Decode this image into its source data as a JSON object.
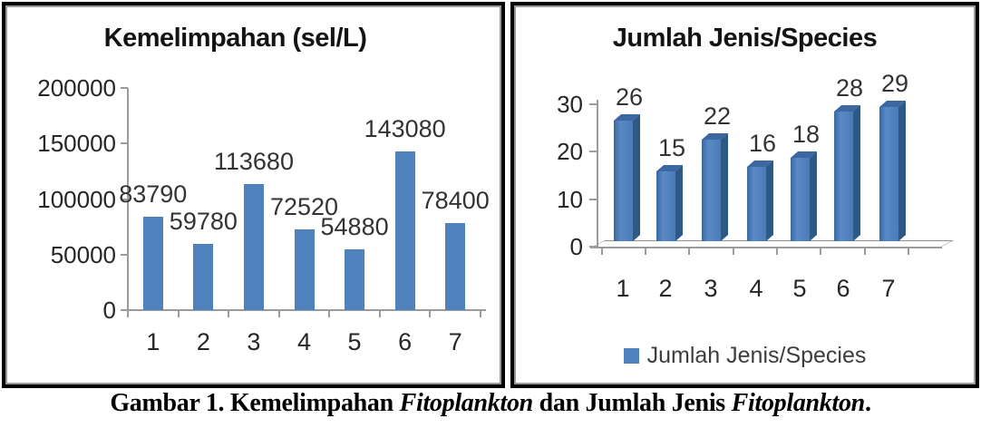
{
  "figure": {
    "caption_segments": [
      {
        "text": "Gambar 1. Kemelimpahan ",
        "italic": false
      },
      {
        "text": "Fitoplankton",
        "italic": true
      },
      {
        "text": " dan Jumlah Jenis ",
        "italic": false
      },
      {
        "text": "Fitoplankton",
        "italic": true
      },
      {
        "text": ".",
        "italic": false
      }
    ]
  },
  "colors": {
    "bar_blue": "#4f81bd",
    "bar3d_side": "#2e5984",
    "bar3d_top": "#3c67a1",
    "axis_gray": "#9b9b9b",
    "label_text": "#333333"
  },
  "chart_data": [
    {
      "type": "bar",
      "style": "flat",
      "title": "Kemelimpahan (sel/L)",
      "categories": [
        "1",
        "2",
        "3",
        "4",
        "5",
        "6",
        "7"
      ],
      "values": [
        83790,
        59780,
        113680,
        72520,
        54880,
        143080,
        78400
      ],
      "data_labels": [
        "83790",
        "59780",
        "113680",
        "72520",
        "54880",
        "143080",
        "78400"
      ],
      "xlabel": "",
      "ylabel": "",
      "ylim": [
        0,
        200000
      ],
      "yticks": [
        0,
        50000,
        100000,
        150000,
        200000
      ],
      "ytick_labels": [
        "0",
        "50000",
        "100000",
        "150000",
        "200000"
      ],
      "grid": false,
      "legend": null
    },
    {
      "type": "bar",
      "style": "3d",
      "title": "Jumlah Jenis/Species",
      "categories": [
        "1",
        "2",
        "3",
        "4",
        "5",
        "6",
        "7"
      ],
      "values": [
        26,
        15,
        22,
        16,
        18,
        28,
        29
      ],
      "data_labels": [
        "26",
        "15",
        "22",
        "16",
        "18",
        "28",
        "29"
      ],
      "xlabel": "",
      "ylabel": "",
      "ylim": [
        0,
        30
      ],
      "yticks": [
        0,
        10,
        20,
        30
      ],
      "ytick_labels": [
        "0",
        "10",
        "20",
        "30"
      ],
      "grid": false,
      "legend": {
        "label": "Jumlah Jenis/Species",
        "position": "bottom"
      }
    }
  ]
}
